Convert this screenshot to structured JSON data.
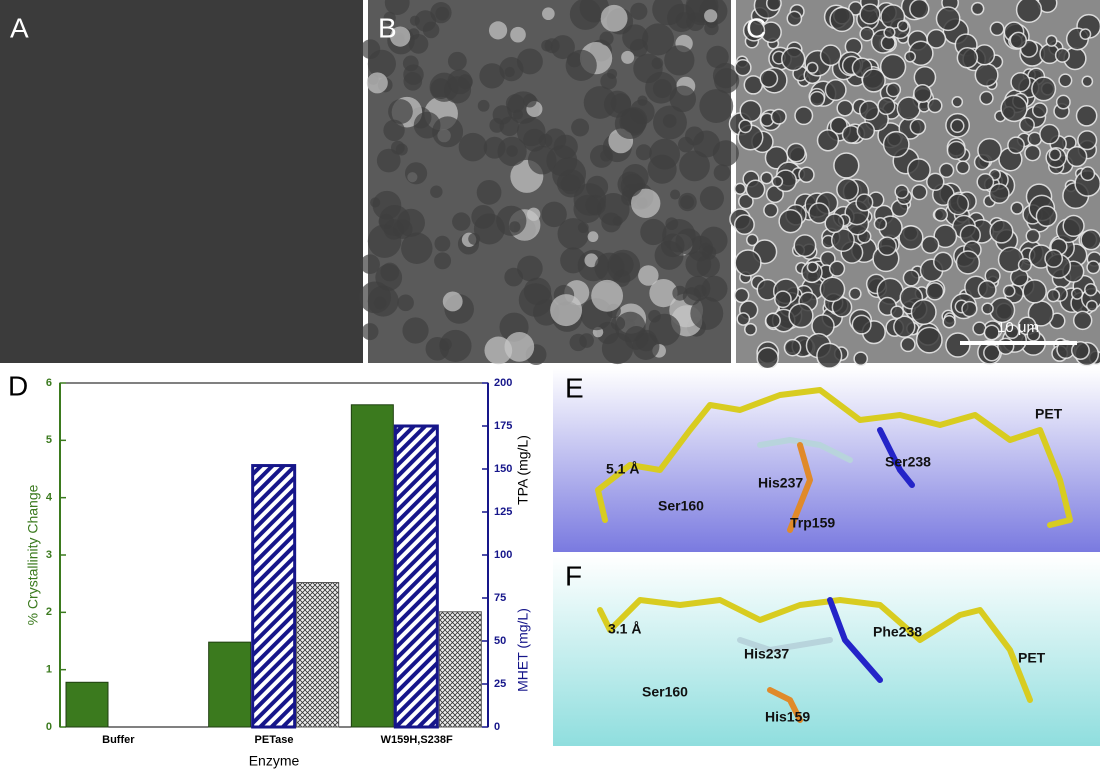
{
  "panel_labels": [
    "A",
    "B",
    "C",
    "D",
    "E",
    "F"
  ],
  "scale_bar": "10 μm",
  "structure_E": {
    "labels": [
      "PET",
      "5.1 Å",
      "His237",
      "Ser238",
      "Ser160",
      "Trp159"
    ]
  },
  "structure_F": {
    "labels": [
      "PET",
      "3.1 Å",
      "His237",
      "Phe238",
      "Ser160",
      "His159"
    ]
  },
  "chart_data": {
    "type": "bar",
    "categories": [
      "Buffer",
      "PETase",
      "W159H,S238F"
    ],
    "xlabel": "Enzyme",
    "ylabel": "% Crystallinity Change",
    "y2labels": [
      "MHET (mg/L)",
      "TPA (mg/L)"
    ],
    "ylim": [
      0,
      6
    ],
    "yticks": [
      0,
      1,
      2,
      3,
      4,
      5,
      6
    ],
    "y2lim": [
      0,
      200
    ],
    "y2ticks": [
      0,
      25,
      50,
      75,
      100,
      125,
      150,
      175,
      200
    ],
    "series": [
      {
        "color": "#3b7a1e",
        "values": [
          0.78,
          1.48,
          5.62
        ]
      },
      {
        "color": "#16168a",
        "pattern": "diagonal",
        "axis": "y2",
        "values": [
          null,
          152,
          175
        ]
      },
      {
        "color": "#555555",
        "pattern": "cross",
        "axis": "y2",
        "values": [
          null,
          84,
          67
        ]
      }
    ]
  }
}
